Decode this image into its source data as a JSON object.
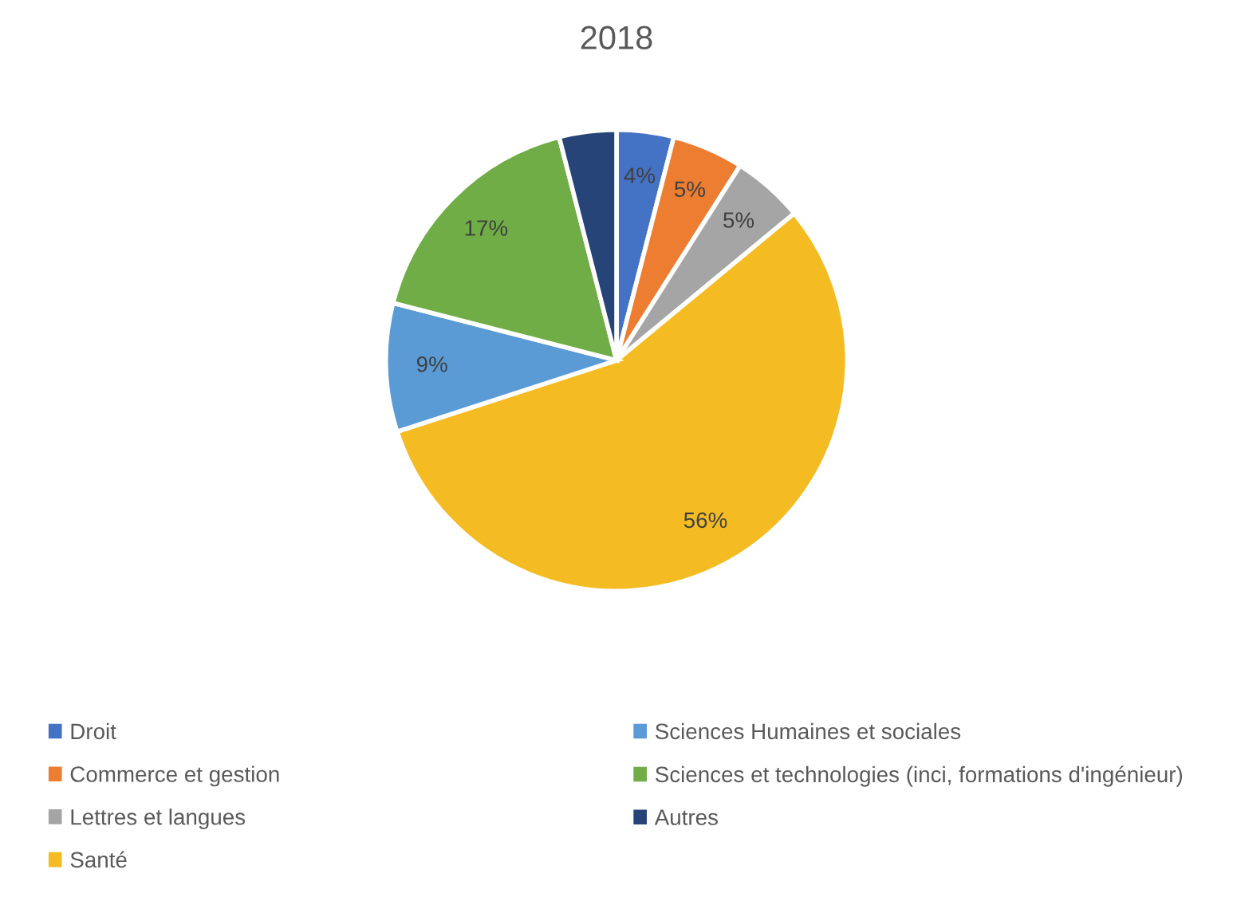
{
  "chart_data": {
    "type": "pie",
    "title": "2018",
    "categories": [
      "Droit",
      "Commerce et gestion",
      "Lettres et langues",
      "Santé",
      "Sciences Humaines et sociales",
      "Sciences et technologies (inci, formations d'ingénieur)",
      "Autres"
    ],
    "values": [
      4,
      5,
      5,
      56,
      9,
      17,
      4
    ],
    "value_labels": [
      "4%",
      "5%",
      "5%",
      "56%",
      "9%",
      "17%",
      null
    ],
    "colors": [
      "#4472c4",
      "#ed7d31",
      "#a5a5a5",
      "#f4bc22",
      "#5b9bd5",
      "#70ad47",
      "#264478"
    ],
    "legend": "bottom"
  }
}
